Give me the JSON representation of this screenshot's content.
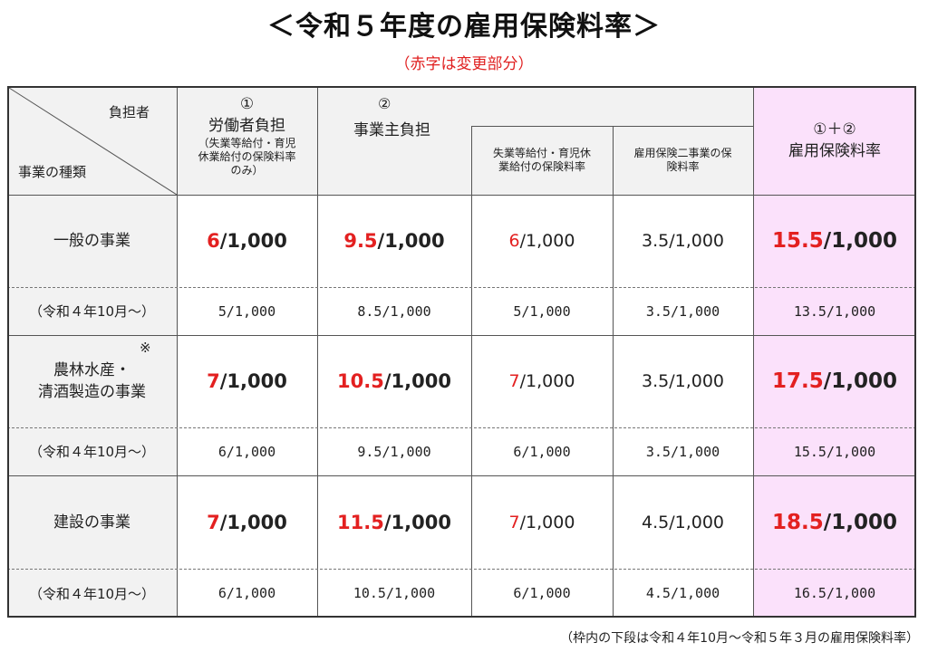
{
  "title": "＜令和５年度の雇用保険料率＞",
  "subtitle": "（赤字は変更部分）",
  "header": {
    "payer": "負担者",
    "business_type": "事業の種類",
    "worker_mark": "①",
    "worker_title": "労働者負担",
    "worker_note": "（失業等給付・育児休業給付の保険料率のみ）",
    "employer_mark": "②",
    "employer_title": "事業主負担",
    "sub1": "失業等給付・育児休業給付の保険料率",
    "sub2": "雇用保険二事業の保険料率",
    "total_mark": "①＋②",
    "total_title": "雇用保険料率"
  },
  "rows": [
    {
      "name": "一般の事業",
      "worker": {
        "red": "6",
        "rest": "/1,000"
      },
      "employer": {
        "red": "9.5",
        "rest": "/1,000"
      },
      "sub1": {
        "red": "6",
        "rest": "/1,000"
      },
      "sub2": "3.5/1,000",
      "total": {
        "red": "15.5",
        "rest": "/1,000"
      },
      "prev_label": "（令和４年10月～）",
      "prev": [
        "5/1,000",
        "8.5/1,000",
        "5/1,000",
        "3.5/1,000",
        "13.5/1,000"
      ]
    },
    {
      "name_line1": "農林水産・",
      "name_line2": "清酒製造の事業",
      "note_mark": "※",
      "worker": {
        "red": "7",
        "rest": "/1,000"
      },
      "employer": {
        "red": "10.5",
        "rest": "/1,000"
      },
      "sub1": {
        "red": "7",
        "rest": "/1,000"
      },
      "sub2": "3.5/1,000",
      "total": {
        "red": "17.5",
        "rest": "/1,000"
      },
      "prev_label": "（令和４年10月～）",
      "prev": [
        "6/1,000",
        "9.5/1,000",
        "6/1,000",
        "3.5/1,000",
        "15.5/1,000"
      ]
    },
    {
      "name": "建設の事業",
      "worker": {
        "red": "7",
        "rest": "/1,000"
      },
      "employer": {
        "red": "11.5",
        "rest": "/1,000"
      },
      "sub1": {
        "red": "7",
        "rest": "/1,000"
      },
      "sub2": "4.5/1,000",
      "total": {
        "red": "18.5",
        "rest": "/1,000"
      },
      "prev_label": "（令和４年10月～）",
      "prev": [
        "6/1,000",
        "10.5/1,000",
        "6/1,000",
        "4.5/1,000",
        "16.5/1,000"
      ]
    }
  ],
  "footnote": "（枠内の下段は令和４年10月～令和５年３月の雇用保険料率）"
}
